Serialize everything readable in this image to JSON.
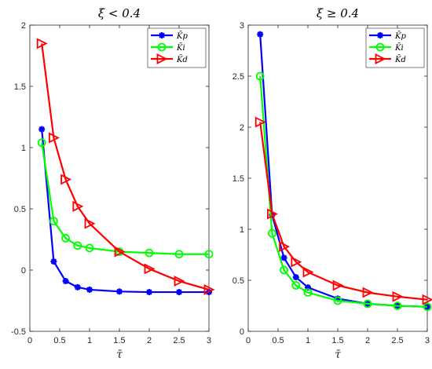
{
  "chart_data": [
    {
      "type": "line",
      "title": "ξ < 0.4",
      "xlabel": "τ̄",
      "ylabel": "",
      "xlim": [
        0,
        3
      ],
      "ylim": [
        -0.5,
        2
      ],
      "xticks": [
        "0",
        "0.5",
        "1",
        "1.5",
        "2",
        "2.5",
        "3"
      ],
      "yticks": [
        "-0.5",
        "0",
        "0.5",
        "1",
        "1.5",
        "2"
      ],
      "grid": false,
      "legend_position": "top-right",
      "x": [
        0.2,
        0.4,
        0.6,
        0.8,
        1.0,
        1.5,
        2.0,
        2.5,
        3.0
      ],
      "series": [
        {
          "name": "K̄p",
          "color": "#0000ff",
          "marker": "asterisk",
          "values": [
            1.15,
            0.07,
            -0.09,
            -0.14,
            -0.16,
            -0.175,
            -0.18,
            -0.18,
            -0.18
          ]
        },
        {
          "name": "K̄i",
          "color": "#00ff00",
          "marker": "circle",
          "values": [
            1.04,
            0.4,
            0.26,
            0.2,
            0.18,
            0.15,
            0.14,
            0.13,
            0.13
          ]
        },
        {
          "name": "K̄d",
          "color": "#ff0000",
          "marker": "triangle-right",
          "values": [
            1.85,
            1.08,
            0.74,
            0.52,
            0.38,
            0.15,
            0.01,
            -0.09,
            -0.16
          ]
        }
      ]
    },
    {
      "type": "line",
      "title": "ξ ≥ 0.4",
      "xlabel": "τ̄",
      "ylabel": "",
      "xlim": [
        0,
        3
      ],
      "ylim": [
        0,
        3
      ],
      "xticks": [
        "0",
        "0.5",
        "1",
        "1.5",
        "2",
        "2.5",
        "3"
      ],
      "yticks": [
        "0",
        "0.5",
        "1",
        "1.5",
        "2",
        "2.5",
        "3"
      ],
      "grid": false,
      "legend_position": "top-right",
      "x": [
        0.2,
        0.4,
        0.6,
        0.8,
        1.0,
        1.5,
        2.0,
        2.5,
        3.0
      ],
      "series": [
        {
          "name": "K̄p",
          "color": "#0000ff",
          "marker": "asterisk",
          "values": [
            2.91,
            1.14,
            0.72,
            0.53,
            0.43,
            0.32,
            0.27,
            0.25,
            0.24
          ]
        },
        {
          "name": "K̄i",
          "color": "#00ff00",
          "marker": "circle",
          "values": [
            2.5,
            0.96,
            0.6,
            0.45,
            0.38,
            0.3,
            0.27,
            0.25,
            0.24
          ]
        },
        {
          "name": "K̄d",
          "color": "#ff0000",
          "marker": "triangle-right",
          "values": [
            2.05,
            1.15,
            0.83,
            0.68,
            0.58,
            0.45,
            0.38,
            0.34,
            0.31
          ]
        }
      ]
    }
  ]
}
